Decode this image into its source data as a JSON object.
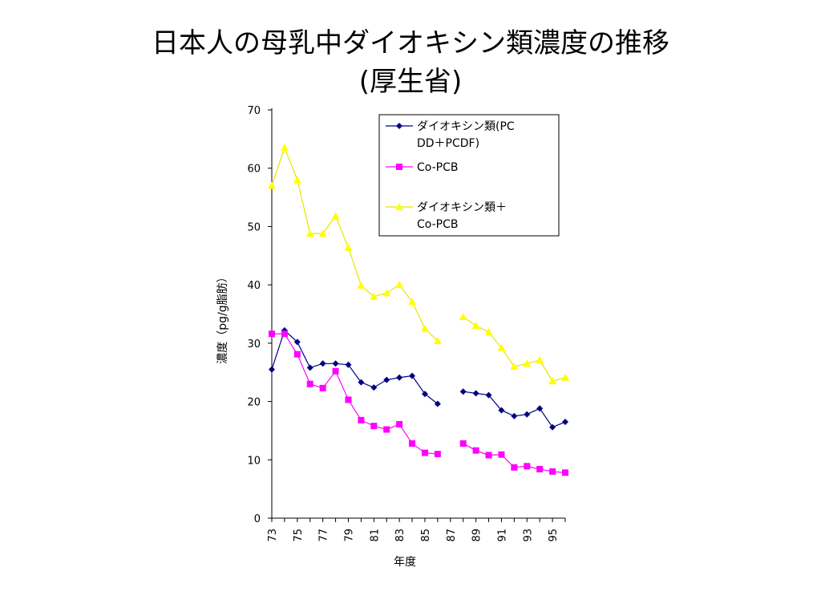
{
  "slide": {
    "title_line1": "日本人の母乳中ダイオキシン類濃度の推移",
    "title_line2": "(厚生省)"
  },
  "chart_data": {
    "type": "line",
    "title": "",
    "xlabel": "年度",
    "ylabel": "濃度（pg/g脂肪）",
    "ylim": [
      0,
      70
    ],
    "yticks": [
      0,
      10,
      20,
      30,
      40,
      50,
      60,
      70
    ],
    "xlim": [
      73,
      96
    ],
    "xticks": [
      "73",
      "75",
      "77",
      "79",
      "81",
      "83",
      "85",
      "87",
      "89",
      "91",
      "93",
      "95"
    ],
    "grid": false,
    "legend_position": "top-right",
    "x": [
      73,
      74,
      75,
      76,
      77,
      78,
      79,
      80,
      81,
      82,
      83,
      84,
      85,
      86,
      87,
      88,
      89,
      90,
      91,
      92,
      93,
      94,
      95,
      96
    ],
    "series": [
      {
        "name_lines": [
          "ダイオキシン類(PC",
          "DD＋PCDF)"
        ],
        "color": "#000080",
        "marker": "diamond",
        "values": [
          25.5,
          32.2,
          30.2,
          25.8,
          26.5,
          26.5,
          26.3,
          23.3,
          22.4,
          23.7,
          24.1,
          24.4,
          21.3,
          19.6,
          null,
          21.7,
          21.4,
          21.1,
          18.5,
          17.5,
          17.8,
          18.8,
          15.6,
          16.5
        ]
      },
      {
        "name_lines": [
          "Co-PCB"
        ],
        "color": "#FF00FF",
        "marker": "square",
        "values": [
          31.6,
          31.6,
          28.1,
          23.0,
          22.3,
          25.2,
          20.3,
          16.8,
          15.8,
          15.2,
          16.1,
          12.8,
          11.2,
          11.0,
          null,
          12.8,
          11.6,
          10.8,
          10.9,
          8.7,
          8.9,
          8.4,
          8.0,
          7.8
        ]
      },
      {
        "name_lines": [
          "ダイオキシン類＋",
          "Co-PCB"
        ],
        "color": "#FFFF00",
        "stroke": "#E6E600",
        "marker": "triangle",
        "values": [
          57.0,
          63.5,
          58.0,
          48.8,
          48.8,
          51.8,
          46.4,
          39.9,
          38.0,
          38.6,
          40.0,
          37.1,
          32.5,
          30.4,
          null,
          34.5,
          33.0,
          31.9,
          29.2,
          26.0,
          26.5,
          27.1,
          23.5,
          24.1
        ]
      }
    ]
  }
}
